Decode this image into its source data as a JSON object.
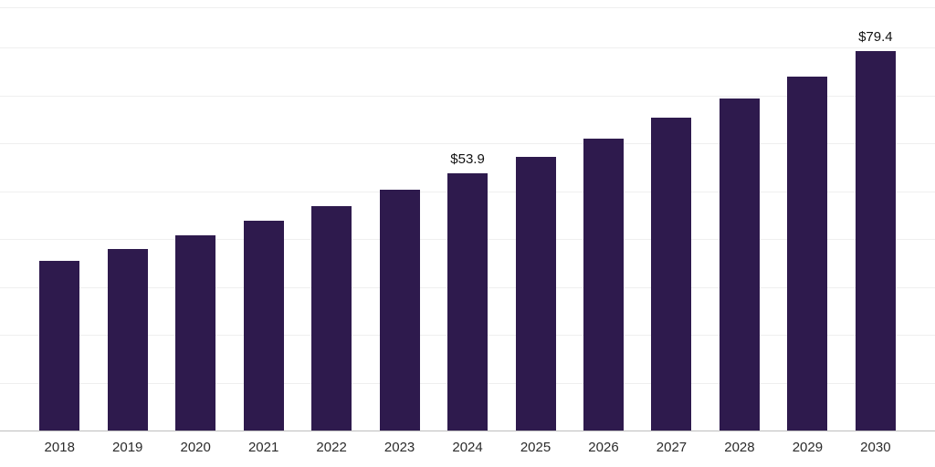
{
  "chart_data": {
    "type": "bar",
    "title": "",
    "xlabel": "",
    "ylabel": "",
    "categories": [
      "2018",
      "2019",
      "2020",
      "2021",
      "2022",
      "2023",
      "2024",
      "2025",
      "2026",
      "2027",
      "2028",
      "2029",
      "2030"
    ],
    "values": [
      35.6,
      38.1,
      40.9,
      44.0,
      47.1,
      50.4,
      53.9,
      57.3,
      61.1,
      65.5,
      69.6,
      74.1,
      79.4
    ],
    "point_labels": [
      "",
      "",
      "",
      "",
      "",
      "",
      "$53.9",
      "",
      "",
      "",
      "",
      "",
      "$79.4"
    ],
    "ylim": [
      0,
      88.4
    ],
    "gridline_values": [
      0,
      10,
      20,
      30,
      40,
      50,
      60,
      70,
      80
    ],
    "grid": true,
    "legend": false,
    "bar_color": "#2e1a4d",
    "gridline_color": "#efefef",
    "axis_line_color": "#bdbdbd",
    "label_color": "#111111",
    "tick_color": "#2b2b2b"
  }
}
